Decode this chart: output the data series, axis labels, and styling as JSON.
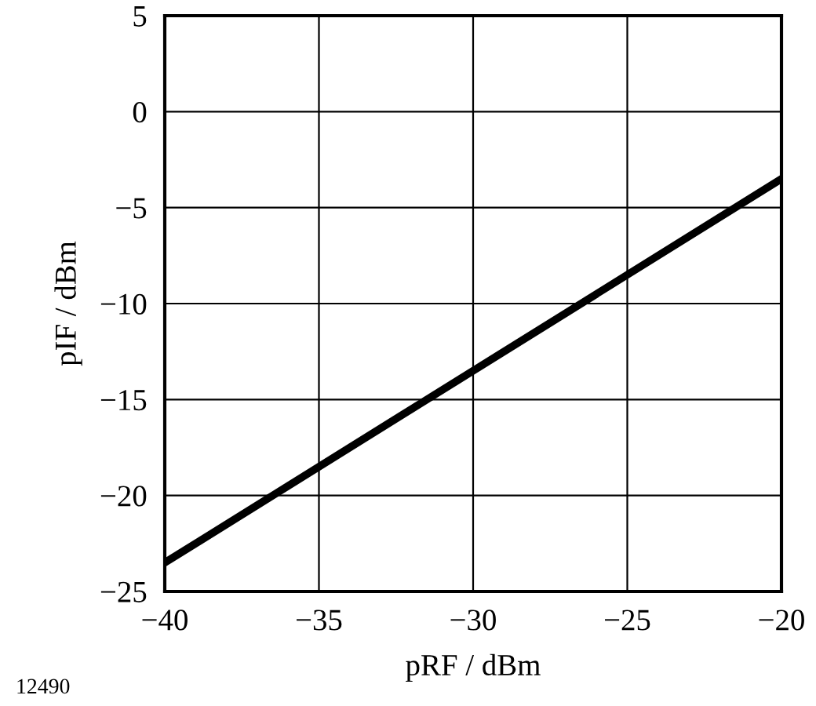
{
  "chart_data": {
    "type": "line",
    "xlabel": "pRF / dBm",
    "ylabel": "pIF / dBm",
    "x": [
      -40,
      -20
    ],
    "series": [
      {
        "color": "#000000",
        "values": [
          -23.5,
          -3.5
        ]
      }
    ],
    "xlim": [
      -40,
      -20
    ],
    "xticks": [
      {
        "value": -40,
        "label": "−40"
      },
      {
        "value": -35,
        "label": "−35"
      },
      {
        "value": -30,
        "label": "−30"
      },
      {
        "value": -25,
        "label": "−25"
      },
      {
        "value": -20,
        "label": "−20"
      }
    ],
    "ylim": [
      -25,
      5
    ],
    "yticks": [
      {
        "value": -25,
        "label": "−25"
      },
      {
        "value": -20,
        "label": "−20"
      },
      {
        "value": -15,
        "label": "−15"
      },
      {
        "value": -10,
        "label": "−10"
      },
      {
        "value": -5,
        "label": "−5"
      },
      0,
      5
    ],
    "grid": true,
    "marker": "none",
    "line_style": "solid",
    "annotations": [
      "12490"
    ]
  }
}
